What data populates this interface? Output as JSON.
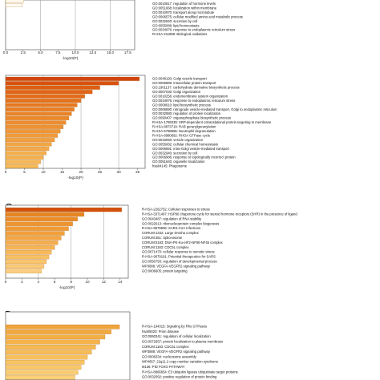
{
  "chart_data": [
    {
      "type": "bar",
      "orientation": "horizontal",
      "panel_letter": "",
      "xlabel": "-log10(P)",
      "xticks": [
        "0.0",
        "2.5",
        "5.0",
        "7.5",
        "10.0",
        "12.5",
        "15.0",
        "17.5"
      ],
      "xlim": [
        0,
        18.5
      ],
      "grid_x": [
        5,
        10,
        15
      ],
      "labels": [
        "GO:0010817: regulation of hormone levels",
        "GO:0051668: localization within membrane",
        "GO:0010970: transport along microtubule",
        "GO:0006575: cellular modified amino acid metabolic process",
        "GO:0032940: secretion by cell",
        "GO:0055088: lipid homeostasis",
        "GO:0034976: response to endoplasmic reticulum stress",
        "R-HSA-211859: Biological oxidations"
      ],
      "values": [
        3.6,
        3.4,
        3.2,
        3.0,
        2.9,
        2.8,
        2.6,
        2.4
      ],
      "colors": [
        "#f9e2a8",
        "#fae7b4",
        "#fbebc0",
        "#fcefcc",
        "#fcf2d6",
        "#fdf5e0",
        "#fdf8ea",
        "#fefbf3"
      ],
      "label_lines_hidden_above": 1,
      "extra_bars_above": 2
    },
    {
      "type": "bar",
      "orientation": "horizontal",
      "panel_letter": "B",
      "xlabel": "-log10(P)",
      "xticks": [
        "0",
        "5",
        "10",
        "15",
        "20",
        "25",
        "30",
        "35"
      ],
      "xlim": [
        0,
        37
      ],
      "grid_x": [
        10,
        20,
        30
      ],
      "labels": [
        "GO:0048193: Golgi vesicle transport",
        "GO:0006886: intracellular protein transport",
        "GO:1901137: carbohydrate derivative biosynthetic process",
        "GO:0007030: Golgi organization",
        "GO:0010256: endomembrane system organization",
        "GO:0034976: response to endoplasmic reticulum stress",
        "GO:0008610: lipid biosynthetic process",
        "GO:0006890: retrograde vesicle-mediated transport, Golgi to endoplasmic reticulum",
        "GO:0032880: regulation of protein localization",
        "GO:0090407: organophosphate biosynthetic process",
        "R-HSA-1799339: SRP-dependent cotranslational protein targeting to membrane",
        "R-HSA-8873719: RAB geranylgeranylation",
        "R-HSA-6798695: Neutrophil degranulation",
        "R-HSA-8980692: RHOA GTPase cycle",
        "GO:0016050: vesicle organization",
        "GO:0055082: cellular chemical homeostasis",
        "GO:0006891: intra-Golgi vesicle-mediated transport",
        "GO:0032940: secretion by cell",
        "GO:0006986: response to topologically incorrect protein",
        "GO:0051640: organelle localization",
        "hsa04145: Phagosome"
      ],
      "values": [
        35.5,
        30.0,
        25.0,
        23.0,
        21.0,
        20.0,
        19.0,
        18.2,
        17.5,
        16.8,
        16.0,
        15.3,
        14.5,
        13.8,
        13.0,
        12.2,
        11.5,
        10.8,
        10.0,
        9.3,
        8.6
      ],
      "colors": [
        "#d2440d",
        "#d8520f",
        "#dd5e12",
        "#e06516",
        "#e36c19",
        "#e5721d",
        "#e77820",
        "#e97e24",
        "#ea8328",
        "#ec882b",
        "#ed8d2f",
        "#ee9233",
        "#ef9737",
        "#f09b3b",
        "#f1a03f",
        "#f2a543",
        "#f3a947",
        "#f4ae4b",
        "#f5b24f",
        "#f5b654",
        "#f6ba58"
      ]
    },
    {
      "type": "bar",
      "orientation": "horizontal",
      "panel_letter": "C",
      "xlabel": "-log10(P)",
      "xticks": [
        "0",
        "2",
        "4",
        "6",
        "8",
        "10",
        "12",
        "14"
      ],
      "xlim": [
        0,
        15
      ],
      "grid_x": [
        4,
        8,
        12
      ],
      "labels": [
        "R-HSA-2262752: Cellular responses to stress",
        "R-HSA-3371497: HSP90 chaperone cycle for steroid hormone receptors (SHR) in the presence of ligand",
        "GO:0043487: regulation of RNA stability",
        "GO:0022613: ribonucleoprotein complex biogenesis",
        "R-HSA-9679506: SARS-CoV Infections",
        "CORUM:1332: Large Drosha complex",
        "CORUM:351: Spliceosome",
        "CORUM:5183: DNA-PK-Ku-eIF2-NF90-NF45 complex",
        "CORUM:1183: CDC5L complex",
        "GO:0071470: cellular response to osmotic stress",
        "R-HSA-9679191: Potential therapeutics for SARS",
        "GO:0050793: regulation of developmental process",
        "WP3888: VEGFA-VEGFR2 signaling pathway",
        "GO:0006605: protein targeting"
      ],
      "values": [
        14.2,
        9.6,
        8.8,
        8.2,
        7.7,
        7.2,
        6.8,
        6.4,
        6.0,
        5.6,
        5.3,
        5.0,
        4.7,
        4.4
      ],
      "colors": [
        "#d2500c",
        "#e78622",
        "#ea8d28",
        "#ed942f",
        "#ef9a35",
        "#f1a03c",
        "#f3a643",
        "#f5ad4b",
        "#f6b352",
        "#f7ba5b",
        "#f8c064",
        "#f9c56c",
        "#fac975",
        "#fbce7f"
      ]
    },
    {
      "type": "bar",
      "orientation": "horizontal",
      "panel_letter": "D",
      "xlabel": "",
      "xticks": [],
      "xlim": [
        0,
        12
      ],
      "grid_x": [],
      "labels": [
        "R-HSA-194315: Signaling by Rho GTPases",
        "hsa05020: Prion disease",
        "GO:0060341: regulation of cellular localization",
        "GO:0072657: protein localization to plasma membrane",
        "CORUM:1183: CDC5L complex",
        "WP3888: VEGFA-VEGFR2 signaling pathway",
        "GO:0006334: nucleosome assembly",
        "WP4657: 22q11.2 copy number variation syndrome",
        "M136: PID FOXO PATHWAY",
        "R-HSA-8866654: E3 ubiquitin ligases ubiquitinate target proteins",
        "GO:0032092: positive regulation of protein binding",
        "CORUM:1: Nop56p-associated pre-rRNA complex"
      ],
      "values": [
        11.0,
        10.2,
        9.6,
        9.1,
        8.7,
        8.3,
        7.9,
        7.6,
        7.3,
        7.0,
        6.7,
        6.4
      ],
      "colors": [
        "#f0a33a",
        "#f2aa40",
        "#f3ae45",
        "#f4b34b",
        "#f5b851",
        "#f6bc57",
        "#f7c05d",
        "#f7c463",
        "#f8c86a",
        "#f9cc71",
        "#facf78",
        "#fad37f"
      ]
    }
  ]
}
